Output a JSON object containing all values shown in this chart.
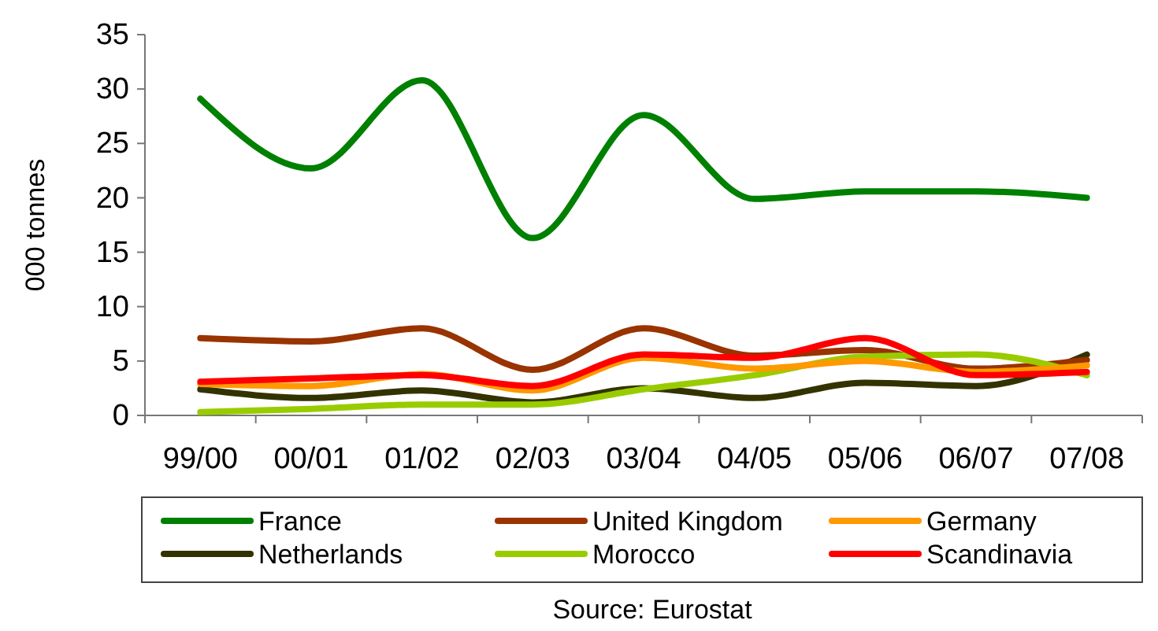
{
  "chart_data": {
    "type": "line",
    "ylabel": "000 tonnes",
    "categories": [
      "99/00",
      "00/01",
      "01/02",
      "02/03",
      "03/04",
      "04/05",
      "05/06",
      "06/07",
      "07/08"
    ],
    "series": [
      {
        "name": "France",
        "color": "#008000",
        "values": [
          29.1,
          22.7,
          30.8,
          16.3,
          27.6,
          19.9,
          20.6,
          20.6,
          20.0
        ]
      },
      {
        "name": "Netherlands",
        "color": "#333300",
        "values": [
          2.4,
          1.6,
          2.3,
          1.2,
          2.5,
          1.6,
          3.0,
          2.7,
          5.6
        ]
      },
      {
        "name": "United Kingdom",
        "color": "#993300",
        "values": [
          7.1,
          6.8,
          8.0,
          4.2,
          8.0,
          5.5,
          6.0,
          4.3,
          5.1
        ]
      },
      {
        "name": "Morocco",
        "color": "#99cc00",
        "values": [
          0.3,
          0.6,
          1.0,
          1.0,
          2.4,
          3.7,
          5.4,
          5.6,
          3.7
        ]
      },
      {
        "name": "Germany",
        "color": "#ff9900",
        "values": [
          2.9,
          2.7,
          3.8,
          2.3,
          5.3,
          4.3,
          5.0,
          4.0,
          4.6
        ]
      },
      {
        "name": "Scandinavia",
        "color": "#ff0000",
        "values": [
          3.1,
          3.4,
          3.7,
          2.7,
          5.6,
          5.3,
          7.1,
          3.7,
          4.0
        ]
      }
    ],
    "ylim": [
      0,
      35
    ],
    "yticks": [
      0,
      5,
      10,
      15,
      20,
      25,
      30,
      35
    ],
    "grid": false,
    "legend": "bottom",
    "marker": "none",
    "line_style": "solid",
    "annotations": [
      "Source: Eurostat"
    ]
  }
}
